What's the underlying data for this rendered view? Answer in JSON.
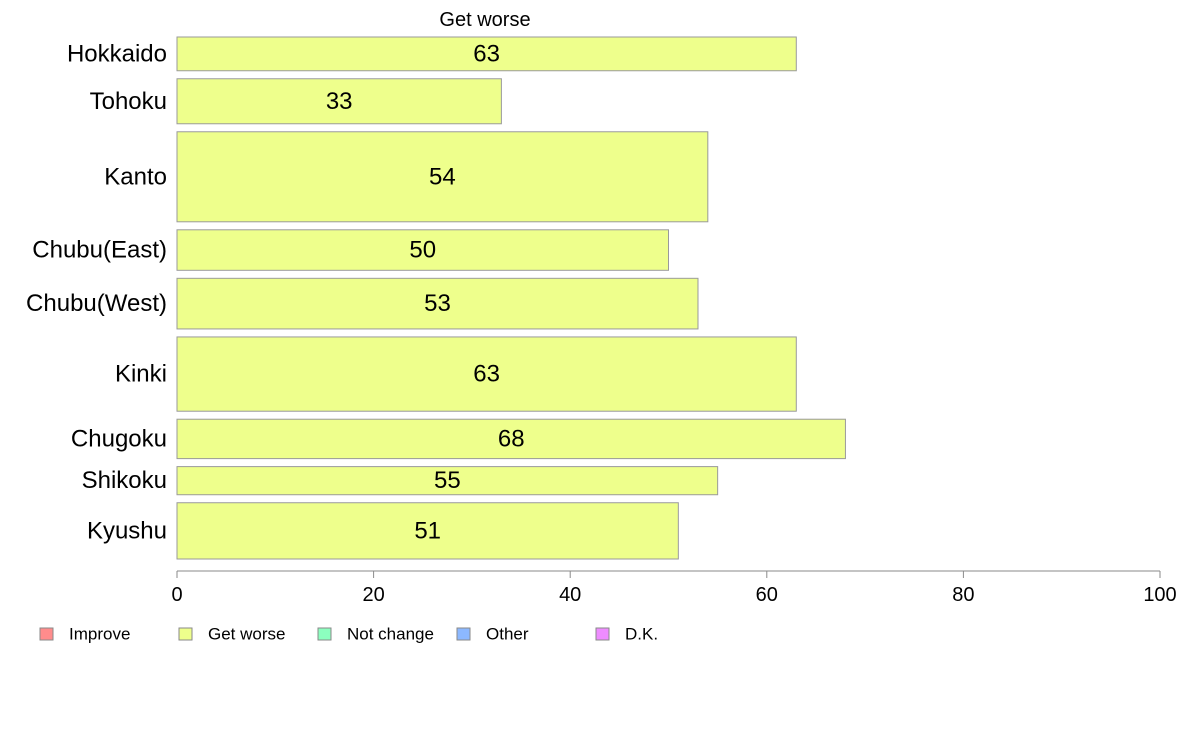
{
  "chart_data": {
    "type": "bar",
    "orientation": "horizontal",
    "title": "Get worse",
    "xlabel": "",
    "ylabel": "",
    "xlim": [
      0,
      100
    ],
    "x_ticks": [
      0,
      20,
      40,
      60,
      80,
      100
    ],
    "grid": false,
    "categories": [
      "Hokkaido",
      "Tohoku",
      "Kanto",
      "Chubu(East)",
      "Chubu(West)",
      "Kinki",
      "Chugoku",
      "Shikoku",
      "Kyushu"
    ],
    "relative_bar_widths": [
      3,
      4,
      8,
      3.6,
      4.5,
      6.6,
      3.5,
      2.5,
      5
    ],
    "series": [
      {
        "name": "Get worse",
        "color": "#eeff8c",
        "values": [
          63,
          33,
          54,
          50,
          53,
          63,
          68,
          55,
          51
        ],
        "value_labels": [
          "63",
          "33",
          "54",
          "50",
          "53",
          "63",
          "68",
          "55",
          "51"
        ]
      }
    ],
    "legend": {
      "placement": "bottom-left",
      "items": [
        {
          "label": "Improve",
          "color": "#ff8c8c"
        },
        {
          "label": "Get worse",
          "color": "#eeff8c"
        },
        {
          "label": "Not change",
          "color": "#8cffbf"
        },
        {
          "label": "Other",
          "color": "#8cb8ff"
        },
        {
          "label": "D.K.",
          "color": "#ee8cff"
        }
      ]
    }
  }
}
